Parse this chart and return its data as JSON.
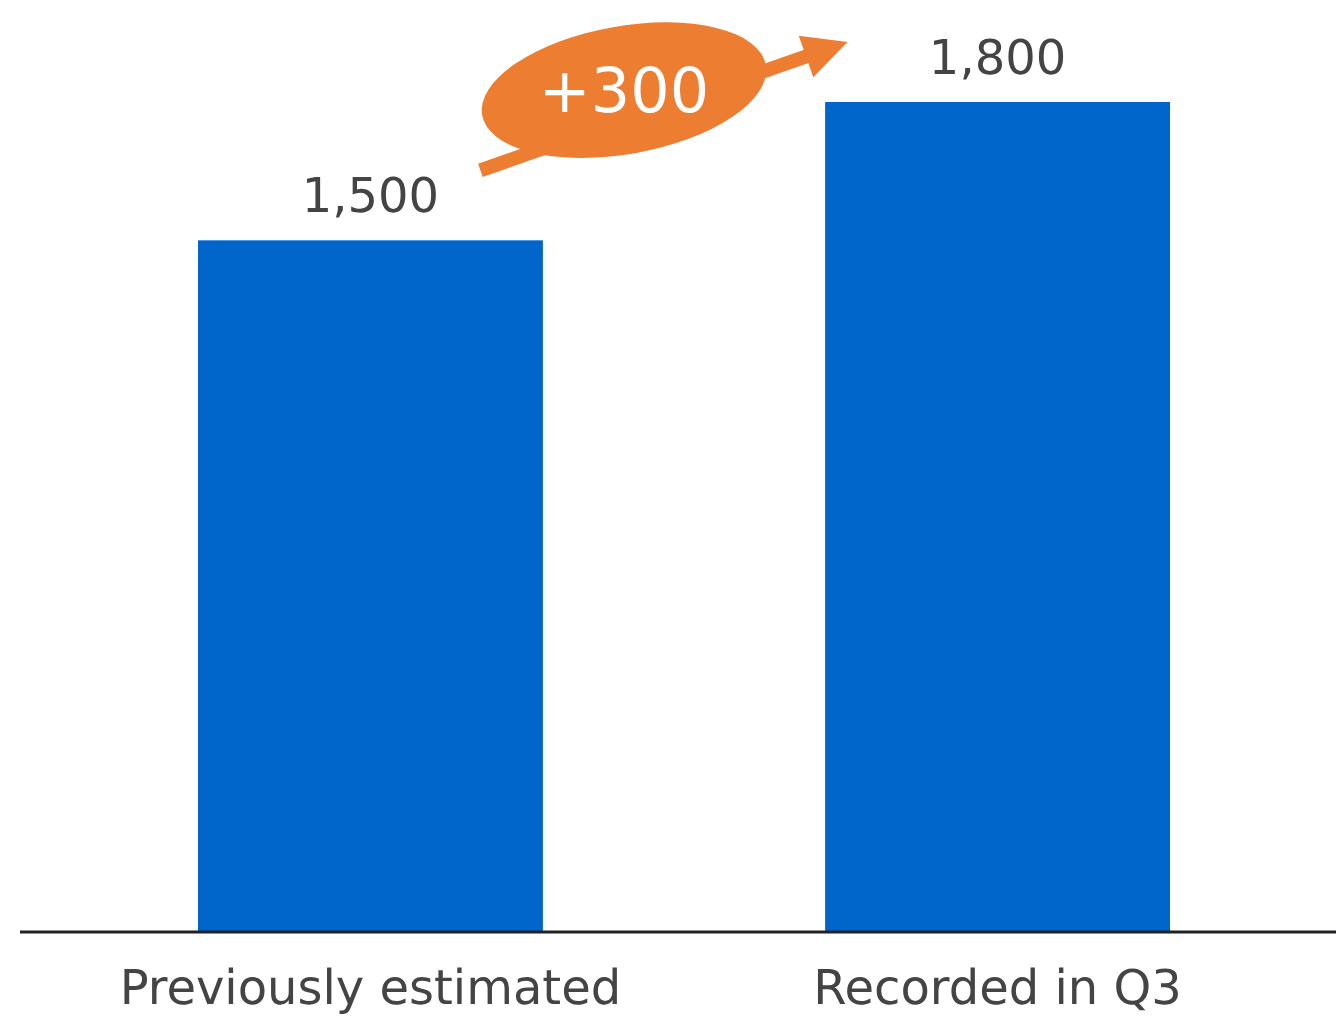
{
  "chart_data": {
    "type": "bar",
    "categories": [
      "Previously estimated",
      "Recorded in Q3"
    ],
    "values": [
      1500,
      1800
    ],
    "color": "#0066cc",
    "value_labels": [
      "1,500",
      "1,800"
    ],
    "annotations": [
      "+300"
    ]
  }
}
